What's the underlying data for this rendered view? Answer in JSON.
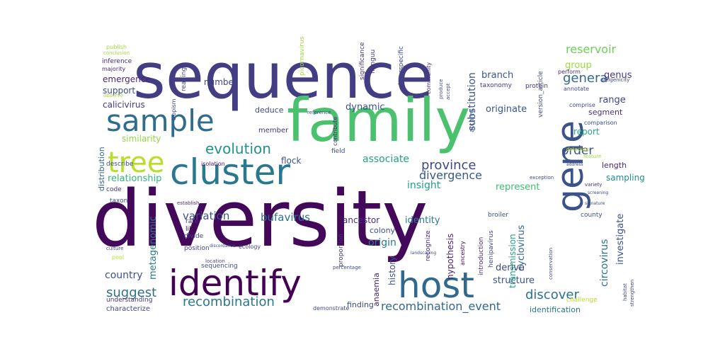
{
  "word_cloud": {
    "words": [
      {
        "text": "diversity",
        "color": "#44085a"
      },
      {
        "text": "sequence",
        "color": "#433d84"
      },
      {
        "text": "family",
        "color": "#4ac16d"
      },
      {
        "text": "cluster",
        "color": "#2a788e"
      },
      {
        "text": "sample",
        "color": "#2f6c8e"
      },
      {
        "text": "gene",
        "color": "#3b528b"
      },
      {
        "text": "identify",
        "color": "#440154"
      },
      {
        "text": "host",
        "color": "#31688e"
      },
      {
        "text": "tree",
        "color": "#b8de29"
      },
      {
        "text": "evolution",
        "color": "#21918c"
      },
      {
        "text": "recombination",
        "color": "#2a788e"
      },
      {
        "text": "province",
        "color": "#3e4a89"
      },
      {
        "text": "discover",
        "color": "#2c718e"
      },
      {
        "text": "suggest",
        "color": "#2d708e"
      },
      {
        "text": "order",
        "color": "#39568c"
      },
      {
        "text": "genera",
        "color": "#31688e"
      },
      {
        "text": "divergence",
        "color": "#38598c"
      },
      {
        "text": "recombination_event",
        "color": "#31688e"
      },
      {
        "text": "reservoir",
        "color": "#6ece58"
      },
      {
        "text": "variation",
        "color": "#3b528b"
      },
      {
        "text": "bufavirus",
        "color": "#2c728e"
      },
      {
        "text": "relationship",
        "color": "#35b779"
      },
      {
        "text": "similarity",
        "color": "#93d741"
      },
      {
        "text": "associate",
        "color": "#20a386"
      },
      {
        "text": "insight",
        "color": "#1f9e89"
      },
      {
        "text": "represent",
        "color": "#3fbc73"
      },
      {
        "text": "identity",
        "color": "#2a788e"
      },
      {
        "text": "report",
        "color": "#22a884"
      },
      {
        "text": "country",
        "color": "#3b528b"
      },
      {
        "text": "dynamic",
        "color": "#3b528b"
      },
      {
        "text": "originate",
        "color": "#39568c"
      },
      {
        "text": "substitution",
        "color": "#3b528b"
      },
      {
        "text": "investigate",
        "color": "#3b528b"
      },
      {
        "text": "circovirus",
        "color": "#2c728e"
      },
      {
        "text": "metagenomic",
        "color": "#2a788e"
      },
      {
        "text": "cyclovirus",
        "color": "#31688e"
      },
      {
        "text": "origin",
        "color": "#2a788e"
      },
      {
        "text": "history",
        "color": "#3b528b"
      },
      {
        "text": "structure",
        "color": "#3b528b"
      },
      {
        "text": "derive",
        "color": "#404688"
      },
      {
        "text": "range",
        "color": "#414487"
      },
      {
        "text": "genus",
        "color": "#453781"
      },
      {
        "text": "segment",
        "color": "#46307e"
      },
      {
        "text": "branch",
        "color": "#39568c"
      },
      {
        "text": "group",
        "color": "#9fda3a"
      },
      {
        "text": "sampling",
        "color": "#21918c"
      },
      {
        "text": "length",
        "color": "#482878"
      },
      {
        "text": "flock",
        "color": "#3b528b"
      },
      {
        "text": "deduce",
        "color": "#3e4989"
      },
      {
        "text": "member",
        "color": "#453781"
      },
      {
        "text": "ancestor",
        "color": "#472d7b"
      },
      {
        "text": "transmission",
        "color": "#20a386"
      },
      {
        "text": "hypothesis",
        "color": "#482475"
      },
      {
        "text": "anaemia",
        "color": "#482173"
      },
      {
        "text": "emergence",
        "color": "#482677"
      },
      {
        "text": "support",
        "color": "#3e4a89"
      },
      {
        "text": "calicivirus",
        "color": "#433e85"
      },
      {
        "text": "number",
        "color": "#404688"
      },
      {
        "text": "distribution",
        "color": "#31688e"
      },
      {
        "text": "identification",
        "color": "#2a788e"
      },
      {
        "text": "finding",
        "color": "#3e4a89"
      },
      {
        "text": "characterize",
        "color": "#3e4989"
      },
      {
        "text": "understanding",
        "color": "#453781"
      },
      {
        "text": "sequencing",
        "color": "#3b528b"
      },
      {
        "text": "divide",
        "color": "#404688"
      },
      {
        "text": "position",
        "color": "#414487"
      },
      {
        "text": "rate",
        "color": "#46307e"
      },
      {
        "text": "like",
        "color": "#440154"
      },
      {
        "text": "colony",
        "color": "#3b528b"
      },
      {
        "text": "isolation",
        "color": "#48186a"
      },
      {
        "text": "describe",
        "color": "#3b528b"
      },
      {
        "text": "code",
        "color": "#46327e"
      },
      {
        "text": "taxon",
        "color": "#3b528b"
      },
      {
        "text": "inference",
        "color": "#482878"
      },
      {
        "text": "majority",
        "color": "#482475"
      },
      {
        "text": "publish",
        "color": "#9fda3a"
      },
      {
        "text": "significance",
        "color": "#46327e"
      },
      {
        "text": "nunguu",
        "color": "#46307e"
      },
      {
        "text": "interspecific",
        "color": "#3e4989"
      },
      {
        "text": "community",
        "color": "#46337f"
      },
      {
        "text": "taxonomy",
        "color": "#433e85"
      },
      {
        "text": "protein",
        "color": "#46307e"
      },
      {
        "text": "perform",
        "color": "#46307e"
      },
      {
        "text": "introduction",
        "color": "#482878"
      },
      {
        "text": "henipavirus",
        "color": "#3e4989"
      },
      {
        "text": "recognize",
        "color": "#482475"
      },
      {
        "text": "ancestry",
        "color": "#440154"
      },
      {
        "text": "proportion",
        "color": "#46327e"
      },
      {
        "text": "contribute",
        "color": "#482475"
      },
      {
        "text": "archive",
        "color": "#3b528b"
      },
      {
        "text": "field",
        "color": "#3b528b"
      },
      {
        "text": "county",
        "color": "#3b528b"
      },
      {
        "text": "broiler",
        "color": "#3b528b"
      },
      {
        "text": "picornavirus",
        "color": "#9fda3a"
      },
      {
        "text": "establish",
        "color": "#482878"
      },
      {
        "text": "challenge",
        "color": "#b8de29"
      },
      {
        "text": "reading",
        "color": "#3e4a89"
      },
      {
        "text": "demonstrate",
        "color": "#3e4a89"
      },
      {
        "text": "version_article",
        "color": "#3e4a89"
      },
      {
        "text": "comparison",
        "color": "#3e4a89"
      },
      {
        "text": "comprise",
        "color": "#3e4989"
      },
      {
        "text": "detection",
        "color": "#cde11d"
      },
      {
        "text": "feature",
        "color": "#9fda3a"
      },
      {
        "text": "variety",
        "color": "#46307e"
      },
      {
        "text": "annotate",
        "color": "#3e4989"
      },
      {
        "text": "antigenicity",
        "color": "#3e4989"
      },
      {
        "text": "pool",
        "color": "#b8de29"
      },
      {
        "text": "reference",
        "color": "#3e4989"
      },
      {
        "text": "percentage",
        "color": "#3e4989"
      },
      {
        "text": "ecology",
        "color": "#3e4989"
      },
      {
        "text": "location",
        "color": "#3e4989"
      },
      {
        "text": "tropism",
        "color": "#3e4989"
      },
      {
        "text": "address",
        "color": "#3e4989"
      },
      {
        "text": "screening",
        "color": "#3e4989"
      },
      {
        "text": "signature",
        "color": "#3e4989"
      },
      {
        "text": "conclusion",
        "color": "#9fda3a"
      },
      {
        "text": "observe",
        "color": "#9fda3a"
      },
      {
        "text": "exception",
        "color": "#3e4989"
      },
      {
        "text": "habitat",
        "color": "#3e4989"
      },
      {
        "text": "strengthen",
        "color": "#3e4989"
      },
      {
        "text": "accept",
        "color": "#3e4989"
      },
      {
        "text": "conservation",
        "color": "#3e4989"
      },
      {
        "text": "culture",
        "color": "#3e4989"
      },
      {
        "text": "discordance",
        "color": "#3e4989"
      },
      {
        "text": "landscaping",
        "color": "#3e4989"
      },
      {
        "text": "produce",
        "color": "#3e4989"
      }
    ]
  }
}
